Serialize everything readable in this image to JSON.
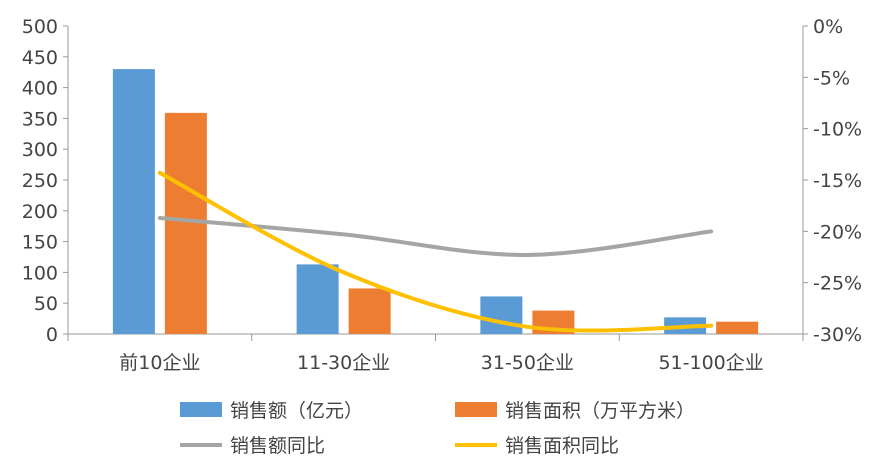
{
  "chart_data": {
    "type": "bar",
    "categories": [
      "前10企业",
      "11-30企业",
      "31-50企业",
      "51-100企业"
    ],
    "series": [
      {
        "name": "销售额（亿元）",
        "kind": "bar",
        "axis": "left",
        "color": "#5B9BD5",
        "values": [
          430,
          113,
          61,
          27
        ]
      },
      {
        "name": "销售面积（万平方米）",
        "kind": "bar",
        "axis": "left",
        "color": "#ED7D31",
        "values": [
          359,
          74,
          38,
          20
        ]
      },
      {
        "name": "销售额同比",
        "kind": "line",
        "axis": "right",
        "color": "#A5A5A5",
        "values": [
          -18.7,
          -20.3,
          -22.3,
          -20.0
        ]
      },
      {
        "name": "销售面积同比",
        "kind": "line",
        "axis": "right",
        "color": "#FFC000",
        "values": [
          -14.3,
          -24.0,
          -29.3,
          -29.2
        ]
      }
    ],
    "y_left": {
      "min": 0,
      "max": 500,
      "step": 50
    },
    "y_right": {
      "min": -30,
      "max": 0,
      "step": 5,
      "unit": "%"
    },
    "legend_position": "bottom",
    "grid": false
  }
}
